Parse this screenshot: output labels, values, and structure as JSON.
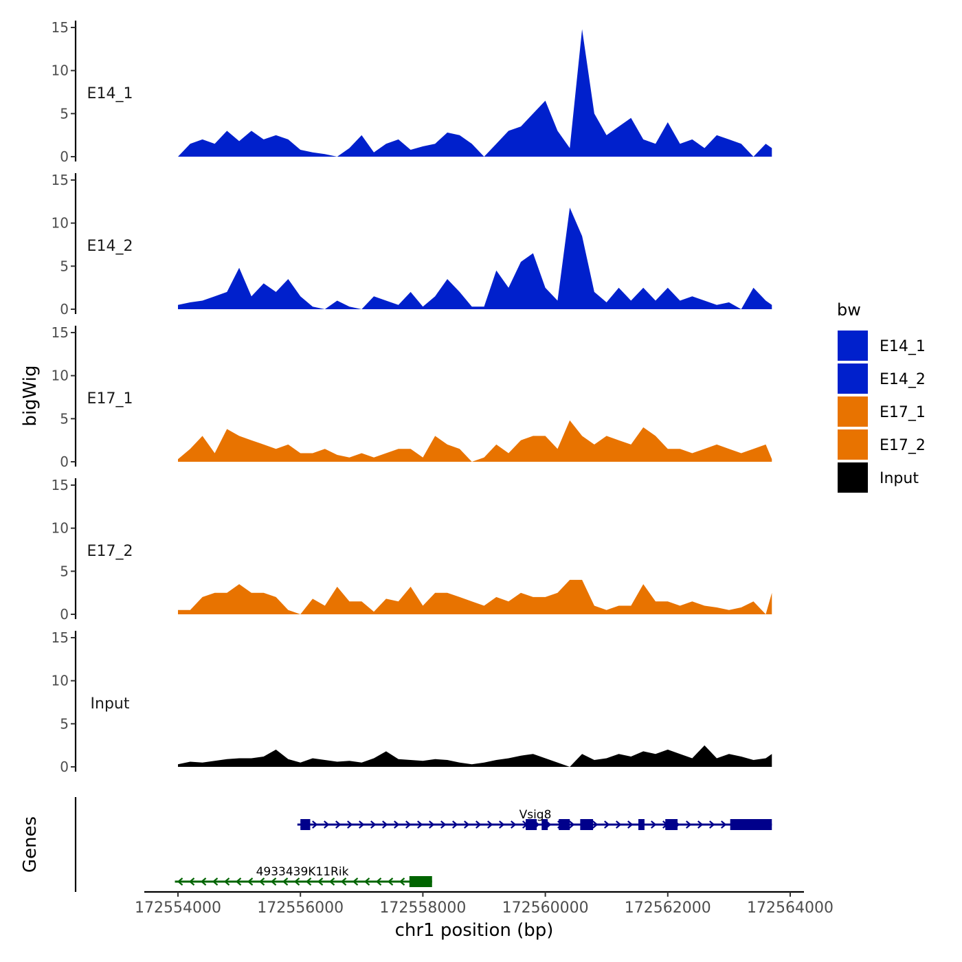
{
  "chart_data": {
    "type": "area",
    "ylabel": "bigWig",
    "genes_label": "Genes",
    "xlabel": "chr1 position (bp)",
    "ylim": [
      0,
      15
    ],
    "y_ticks": [
      "0",
      "5",
      "10",
      "15"
    ],
    "xlim": [
      172553700,
      172563900
    ],
    "x_ticks": [
      "172554000",
      "172556000",
      "172558000",
      "172560000",
      "172562000",
      "172564000"
    ],
    "legend": {
      "title": "bw",
      "position": "right",
      "items": [
        {
          "label": "E14_1",
          "color": "#0020CC"
        },
        {
          "label": "E14_2",
          "color": "#0020CC"
        },
        {
          "label": "E17_1",
          "color": "#E87300"
        },
        {
          "label": "E17_2",
          "color": "#E87300"
        },
        {
          "label": "Input",
          "color": "#000000"
        }
      ]
    },
    "x": [
      172554000,
      172554200,
      172554400,
      172554600,
      172554800,
      172555000,
      172555200,
      172555400,
      172555600,
      172555800,
      172556000,
      172556200,
      172556400,
      172556600,
      172556800,
      172557000,
      172557200,
      172557400,
      172557600,
      172557800,
      172558000,
      172558200,
      172558400,
      172558600,
      172558800,
      172559000,
      172559200,
      172559400,
      172559600,
      172559800,
      172560000,
      172560200,
      172560400,
      172560600,
      172560800,
      172561000,
      172561200,
      172561400,
      172561600,
      172561800,
      172562000,
      172562200,
      172562400,
      172562600,
      172562800,
      172563000,
      172563200,
      172563400,
      172563600,
      172563700
    ],
    "series": [
      {
        "name": "E14_1",
        "color": "#0020CC",
        "values": [
          0.0,
          1.5,
          2.0,
          1.5,
          3.0,
          1.8,
          3.0,
          2.0,
          2.5,
          2.0,
          0.8,
          0.5,
          0.3,
          0.0,
          1.0,
          2.5,
          0.5,
          1.5,
          2.0,
          0.8,
          1.2,
          1.5,
          2.8,
          2.5,
          1.5,
          0.0,
          1.5,
          3.0,
          3.5,
          5.0,
          6.5,
          3.0,
          1.0,
          14.8,
          5.0,
          2.5,
          3.5,
          4.5,
          2.0,
          1.5,
          4.0,
          1.5,
          2.0,
          1.0,
          2.5,
          2.0,
          1.5,
          0.0,
          1.5,
          1.0
        ]
      },
      {
        "name": "E14_2",
        "color": "#0020CC",
        "values": [
          0.5,
          0.8,
          1.0,
          1.5,
          2.0,
          4.8,
          1.5,
          3.0,
          2.0,
          3.5,
          1.5,
          0.3,
          0.0,
          1.0,
          0.3,
          0.0,
          1.5,
          1.0,
          0.5,
          2.0,
          0.3,
          1.5,
          3.5,
          2.0,
          0.3,
          0.3,
          4.5,
          2.5,
          5.5,
          6.5,
          2.5,
          1.0,
          11.8,
          8.5,
          2.0,
          0.8,
          2.5,
          1.0,
          2.5,
          1.0,
          2.5,
          1.0,
          1.5,
          1.0,
          0.5,
          0.8,
          0.0,
          2.5,
          1.0,
          0.5
        ]
      },
      {
        "name": "E17_1",
        "color": "#E87300",
        "values": [
          0.3,
          1.5,
          3.0,
          1.0,
          3.8,
          3.0,
          2.5,
          2.0,
          1.5,
          2.0,
          1.0,
          1.0,
          1.5,
          0.8,
          0.5,
          1.0,
          0.5,
          1.0,
          1.5,
          1.5,
          0.5,
          3.0,
          2.0,
          1.5,
          0.0,
          0.5,
          2.0,
          1.0,
          2.5,
          3.0,
          3.0,
          1.5,
          4.8,
          3.0,
          2.0,
          3.0,
          2.5,
          2.0,
          4.0,
          3.0,
          1.5,
          1.5,
          1.0,
          1.5,
          2.0,
          1.5,
          1.0,
          1.5,
          2.0,
          0.3
        ]
      },
      {
        "name": "E17_2",
        "color": "#E87300",
        "values": [
          0.5,
          0.5,
          2.0,
          2.5,
          2.5,
          3.5,
          2.5,
          2.5,
          2.0,
          0.5,
          0.0,
          1.8,
          1.0,
          3.2,
          1.5,
          1.5,
          0.3,
          1.8,
          1.5,
          3.2,
          1.0,
          2.5,
          2.5,
          2.0,
          1.5,
          1.0,
          2.0,
          1.5,
          2.5,
          2.0,
          2.0,
          2.5,
          4.0,
          4.0,
          1.0,
          0.5,
          1.0,
          1.0,
          3.5,
          1.5,
          1.5,
          1.0,
          1.5,
          1.0,
          0.8,
          0.5,
          0.8,
          1.5,
          0.0,
          2.5
        ]
      },
      {
        "name": "Input",
        "color": "#000000",
        "values": [
          0.3,
          0.6,
          0.5,
          0.7,
          0.9,
          1.0,
          1.0,
          1.2,
          2.0,
          0.9,
          0.5,
          1.0,
          0.8,
          0.6,
          0.7,
          0.5,
          1.0,
          1.8,
          0.9,
          0.8,
          0.7,
          0.9,
          0.8,
          0.5,
          0.3,
          0.5,
          0.8,
          1.0,
          1.3,
          1.5,
          1.0,
          0.5,
          0.0,
          1.5,
          0.8,
          1.0,
          1.5,
          1.2,
          1.8,
          1.5,
          2.0,
          1.5,
          1.0,
          2.5,
          1.0,
          1.5,
          1.2,
          0.8,
          1.0,
          1.5
        ]
      }
    ],
    "genes": [
      {
        "name": "Vsig8",
        "strand": "+",
        "start": 172555950,
        "end": 172563700,
        "color": "#00008B",
        "exons": [
          [
            172556000,
            172556160
          ],
          [
            172559680,
            172559860
          ],
          [
            172559940,
            172560040
          ],
          [
            172560220,
            172560400
          ],
          [
            172560570,
            172560780
          ],
          [
            172561520,
            172561620
          ],
          [
            172561960,
            172562160
          ],
          [
            172563020,
            172563700
          ]
        ]
      },
      {
        "name": "4933439K11Rik",
        "strand": "-",
        "start": 172553950,
        "end": 172558150,
        "color": "#006400",
        "exons": [
          [
            172557780,
            172558150
          ]
        ]
      }
    ]
  }
}
